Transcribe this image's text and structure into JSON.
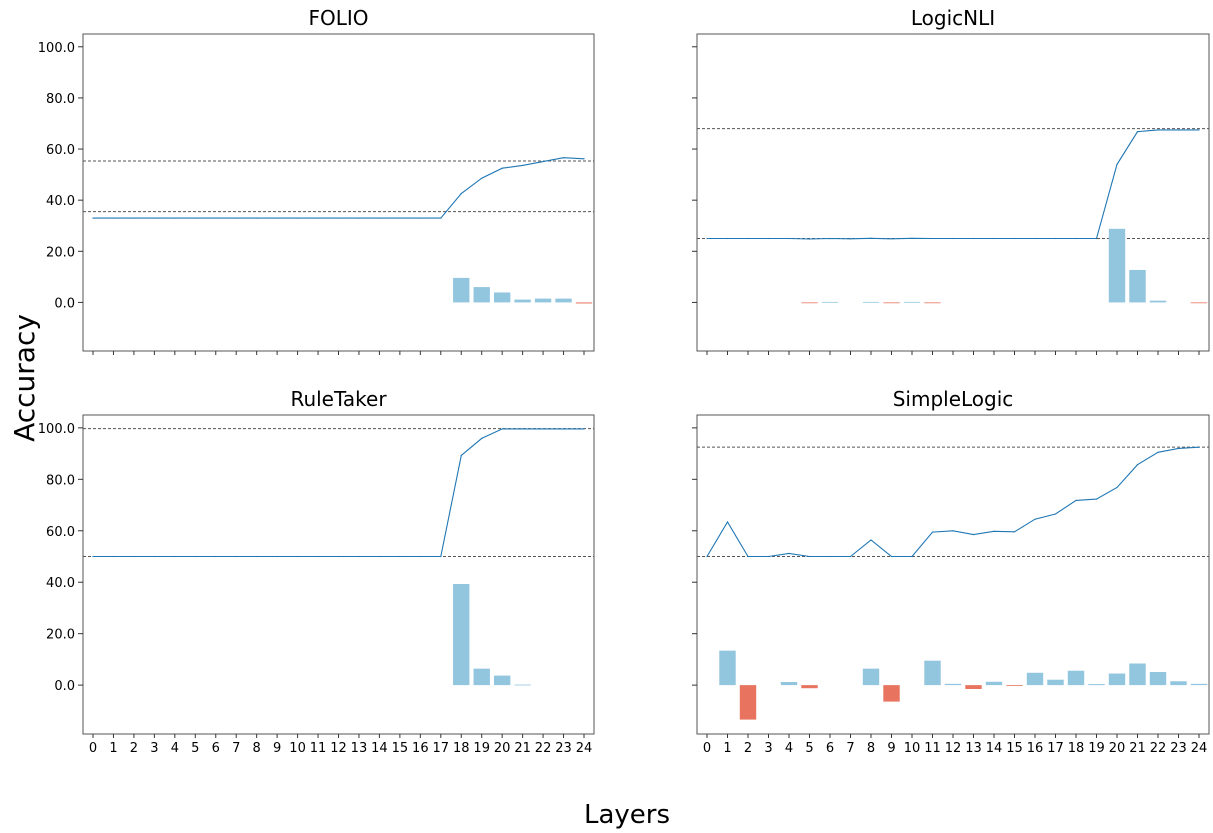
{
  "figure": {
    "ylabel": "Accuracy",
    "xlabel": "Layers"
  },
  "colors": {
    "line": "#1f77b4",
    "bar_positive": "#92c5de",
    "bar_negative": "#e8735f",
    "ref_line": "#555555",
    "axes": "#555555"
  },
  "chart_data": [
    {
      "type": "line+bar",
      "title": "FOLIO",
      "x": [
        0,
        1,
        2,
        3,
        4,
        5,
        6,
        7,
        8,
        9,
        10,
        11,
        12,
        13,
        14,
        15,
        16,
        17,
        18,
        19,
        20,
        21,
        22,
        23,
        24
      ],
      "ylim": [
        -19,
        105
      ],
      "yticks": [
        "0.0",
        "20.0",
        "40.0",
        "60.0",
        "80.0",
        "100.0"
      ],
      "show_yticklabels": true,
      "show_xticklabels": false,
      "ref_lines": [
        55.3,
        35.5
      ],
      "series": [
        {
          "kind": "line",
          "values": [
            33,
            33,
            33,
            33,
            33,
            33,
            33,
            33,
            33,
            33,
            33,
            33,
            33,
            33,
            33,
            33,
            33,
            33,
            42.6,
            48.6,
            52.5,
            53.6,
            55.1,
            56.6,
            56.2
          ]
        },
        {
          "kind": "bar",
          "values": [
            0,
            0,
            0,
            0,
            0,
            0,
            0,
            0,
            0,
            0,
            0,
            0,
            0,
            0,
            0,
            0,
            0,
            0,
            9.6,
            6.0,
            3.9,
            1.1,
            1.5,
            1.5,
            -0.4
          ]
        }
      ]
    },
    {
      "type": "line+bar",
      "title": "LogicNLI",
      "x": [
        0,
        1,
        2,
        3,
        4,
        5,
        6,
        7,
        8,
        9,
        10,
        11,
        12,
        13,
        14,
        15,
        16,
        17,
        18,
        19,
        20,
        21,
        22,
        23,
        24
      ],
      "ylim": [
        -19,
        105
      ],
      "yticks": [
        "0.0",
        "20.0",
        "40.0",
        "60.0",
        "80.0",
        "100.0"
      ],
      "show_yticklabels": false,
      "show_xticklabels": false,
      "ref_lines": [
        68,
        25
      ],
      "series": [
        {
          "kind": "line",
          "values": [
            25,
            25,
            25,
            25,
            25,
            24.8,
            25,
            24.9,
            25.1,
            24.9,
            25.1,
            25,
            25,
            25,
            25,
            25,
            25,
            25,
            25,
            25,
            54,
            66.8,
            67.5,
            67.5,
            67.5
          ]
        },
        {
          "kind": "bar",
          "values": [
            0,
            0,
            0,
            0,
            0,
            -0.2,
            0.2,
            0,
            0.2,
            -0.2,
            0.2,
            -0.2,
            0,
            0,
            0,
            0,
            0,
            0,
            0,
            0,
            28.8,
            12.7,
            0.7,
            0,
            -0.1
          ]
        }
      ]
    },
    {
      "type": "line+bar",
      "title": "RuleTaker",
      "x": [
        0,
        1,
        2,
        3,
        4,
        5,
        6,
        7,
        8,
        9,
        10,
        11,
        12,
        13,
        14,
        15,
        16,
        17,
        18,
        19,
        20,
        21,
        22,
        23,
        24
      ],
      "ylim": [
        -19,
        105
      ],
      "yticks": [
        "0.0",
        "20.0",
        "40.0",
        "60.0",
        "80.0",
        "100.0"
      ],
      "show_yticklabels": true,
      "show_xticklabels": true,
      "ref_lines": [
        99.7,
        50
      ],
      "series": [
        {
          "kind": "line",
          "values": [
            50,
            50,
            50,
            50,
            50,
            50,
            50,
            50,
            50,
            50,
            50,
            50,
            50,
            50,
            50,
            50,
            50,
            50,
            89.3,
            95.9,
            99.6,
            99.6,
            99.6,
            99.6,
            99.6
          ]
        },
        {
          "kind": "bar",
          "values": [
            0,
            0,
            0,
            0,
            0,
            0,
            0,
            0,
            0,
            0,
            0,
            0,
            0,
            0,
            0,
            0,
            0,
            0,
            39.3,
            6.4,
            3.7,
            0.2,
            0,
            0,
            0
          ]
        }
      ]
    },
    {
      "type": "line+bar",
      "title": "SimpleLogic",
      "x": [
        0,
        1,
        2,
        3,
        4,
        5,
        6,
        7,
        8,
        9,
        10,
        11,
        12,
        13,
        14,
        15,
        16,
        17,
        18,
        19,
        20,
        21,
        22,
        23,
        24
      ],
      "ylim": [
        -19,
        105
      ],
      "yticks": [
        "0.0",
        "20.0",
        "40.0",
        "60.0",
        "80.0",
        "100.0"
      ],
      "show_yticklabels": false,
      "show_xticklabels": true,
      "ref_lines": [
        92.5,
        50
      ],
      "series": [
        {
          "kind": "line",
          "values": [
            50,
            63.4,
            50,
            50,
            51.2,
            50,
            50,
            50,
            56.4,
            50,
            50,
            59.5,
            60,
            58.5,
            59.8,
            59.6,
            64.5,
            66.5,
            71.8,
            72.3,
            76.8,
            85.7,
            90.5,
            92,
            92.5
          ]
        },
        {
          "kind": "bar",
          "values": [
            0,
            13.4,
            -13.4,
            0,
            1.2,
            -1.2,
            0,
            0,
            6.4,
            -6.4,
            0,
            9.5,
            0.5,
            -1.5,
            1.3,
            -0.2,
            4.8,
            2.1,
            5.6,
            0.4,
            4.5,
            8.4,
            5.1,
            1.5,
            0.5
          ]
        }
      ]
    }
  ]
}
